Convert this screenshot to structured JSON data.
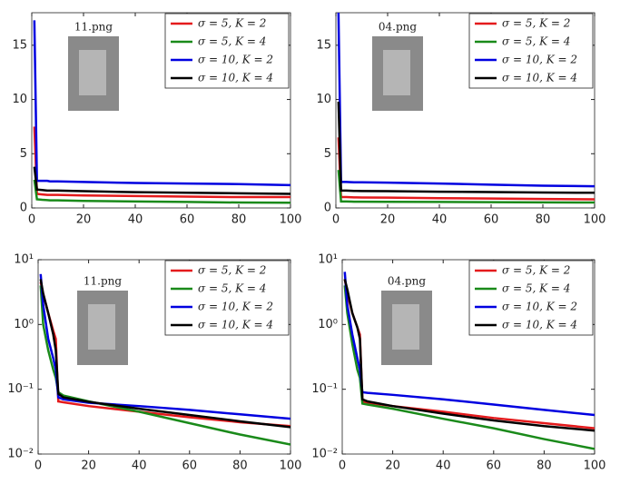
{
  "chart_data": [
    {
      "type": "line",
      "title": "11.png",
      "yscale": "linear",
      "grid": false,
      "legend": "upper right",
      "x": [
        1,
        2,
        4,
        6,
        7,
        8,
        10,
        20,
        40,
        60,
        80,
        100
      ],
      "xlim": [
        0,
        100
      ],
      "xticks": [
        0,
        20,
        40,
        60,
        80,
        100
      ],
      "ylim": [
        0,
        18
      ],
      "yticks": [
        0,
        5,
        10,
        15
      ],
      "series": [
        {
          "name": "σ = 5, K = 2",
          "color": "#e41a1c",
          "values": [
            7.5,
            1.3,
            1.25,
            1.2,
            1.2,
            1.2,
            1.2,
            1.15,
            1.1,
            1.05,
            1.0,
            1.0
          ]
        },
        {
          "name": "σ = 5, K = 4",
          "color": "#1a8a1a",
          "values": [
            2.6,
            0.8,
            0.75,
            0.72,
            0.7,
            0.7,
            0.7,
            0.65,
            0.6,
            0.55,
            0.5,
            0.48
          ]
        },
        {
          "name": "σ = 10, K = 2",
          "color": "#0000e0",
          "values": [
            17.3,
            2.5,
            2.5,
            2.5,
            2.45,
            2.45,
            2.45,
            2.4,
            2.3,
            2.25,
            2.2,
            2.1
          ]
        },
        {
          "name": "σ = 10, K = 4",
          "color": "#000000",
          "values": [
            3.8,
            1.7,
            1.65,
            1.6,
            1.6,
            1.6,
            1.6,
            1.55,
            1.45,
            1.4,
            1.35,
            1.3
          ]
        }
      ]
    },
    {
      "type": "line",
      "title": "04.png",
      "yscale": "linear",
      "grid": false,
      "legend": "upper right",
      "x": [
        1,
        2,
        4,
        6,
        7,
        8,
        10,
        20,
        40,
        60,
        80,
        100
      ],
      "xlim": [
        0,
        100
      ],
      "xticks": [
        0,
        20,
        40,
        60,
        80,
        100
      ],
      "ylim": [
        0,
        18
      ],
      "yticks": [
        0,
        5,
        10,
        15
      ],
      "series": [
        {
          "name": "σ = 5, K = 2",
          "color": "#e41a1c",
          "values": [
            6.5,
            1.0,
            1.0,
            0.98,
            0.97,
            0.97,
            0.96,
            0.95,
            0.9,
            0.87,
            0.83,
            0.8
          ]
        },
        {
          "name": "σ = 5, K = 4",
          "color": "#1a8a1a",
          "values": [
            3.5,
            0.6,
            0.6,
            0.59,
            0.58,
            0.58,
            0.58,
            0.57,
            0.55,
            0.53,
            0.51,
            0.5
          ]
        },
        {
          "name": "σ = 10, K = 2",
          "color": "#0000e0",
          "values": [
            18,
            2.4,
            2.4,
            2.38,
            2.37,
            2.37,
            2.36,
            2.33,
            2.25,
            2.15,
            2.05,
            2.0
          ]
        },
        {
          "name": "σ = 10, K = 4",
          "color": "#000000",
          "values": [
            9.8,
            1.6,
            1.6,
            1.58,
            1.57,
            1.57,
            1.56,
            1.55,
            1.5,
            1.46,
            1.42,
            1.4
          ]
        }
      ]
    },
    {
      "type": "line",
      "title": "11.png",
      "yscale": "log",
      "grid": false,
      "legend": "upper right",
      "x": [
        1,
        2,
        4,
        6,
        7,
        8,
        10,
        20,
        40,
        60,
        80,
        100
      ],
      "xlim": [
        0,
        100
      ],
      "xticks": [
        0,
        20,
        40,
        60,
        80,
        100
      ],
      "ylim": [
        0.01,
        10
      ],
      "yticks": [
        {
          "value": 0.01,
          "label": "10⁻²"
        },
        {
          "value": 0.1,
          "label": "10⁻¹"
        },
        {
          "value": 1,
          "label": "10⁰"
        },
        {
          "value": 10,
          "label": "10¹"
        }
      ],
      "series": [
        {
          "name": "σ = 5, K = 2",
          "color": "#e41a1c",
          "values": [
            4.5,
            3,
            1.5,
            0.8,
            0.6,
            0.065,
            0.063,
            0.055,
            0.045,
            0.037,
            0.031,
            0.027
          ]
        },
        {
          "name": "σ = 5, K = 4",
          "color": "#1a8a1a",
          "values": [
            4,
            1.0,
            0.4,
            0.2,
            0.15,
            0.09,
            0.08,
            0.065,
            0.045,
            0.03,
            0.02,
            0.014
          ]
        },
        {
          "name": "σ = 10, K = 2",
          "color": "#0000e0",
          "values": [
            6,
            2,
            0.6,
            0.3,
            0.2,
            0.075,
            0.07,
            0.062,
            0.055,
            0.048,
            0.041,
            0.035
          ]
        },
        {
          "name": "σ = 10, K = 4",
          "color": "#000000",
          "values": [
            5,
            3,
            1.5,
            0.7,
            0.4,
            0.085,
            0.075,
            0.064,
            0.05,
            0.04,
            0.032,
            0.026
          ]
        }
      ]
    },
    {
      "type": "line",
      "title": "04.png",
      "yscale": "log",
      "grid": false,
      "legend": "upper right",
      "x": [
        1,
        2,
        4,
        6,
        7,
        8,
        10,
        20,
        40,
        60,
        80,
        100
      ],
      "xlim": [
        0,
        100
      ],
      "xticks": [
        0,
        20,
        40,
        60,
        80,
        100
      ],
      "ylim": [
        0.01,
        10
      ],
      "yticks": [
        {
          "value": 0.01,
          "label": "10⁻²"
        },
        {
          "value": 0.1,
          "label": "10⁻¹"
        },
        {
          "value": 1,
          "label": "10⁰"
        },
        {
          "value": 10,
          "label": "10¹"
        }
      ],
      "series": [
        {
          "name": "σ = 5, K = 2",
          "color": "#e41a1c",
          "values": [
            5,
            3,
            1.5,
            0.9,
            0.7,
            0.065,
            0.062,
            0.055,
            0.045,
            0.036,
            0.03,
            0.025
          ]
        },
        {
          "name": "σ = 5, K = 4",
          "color": "#1a8a1a",
          "values": [
            4,
            1.5,
            0.5,
            0.2,
            0.15,
            0.06,
            0.058,
            0.05,
            0.035,
            0.025,
            0.017,
            0.012
          ]
        },
        {
          "name": "σ = 10, K = 2",
          "color": "#0000e0",
          "values": [
            6.5,
            2,
            0.7,
            0.3,
            0.2,
            0.09,
            0.088,
            0.082,
            0.07,
            0.058,
            0.048,
            0.04
          ]
        },
        {
          "name": "σ = 10, K = 4",
          "color": "#000000",
          "values": [
            5,
            3.5,
            1.5,
            0.9,
            0.6,
            0.07,
            0.065,
            0.055,
            0.042,
            0.033,
            0.027,
            0.023
          ]
        }
      ]
    }
  ]
}
